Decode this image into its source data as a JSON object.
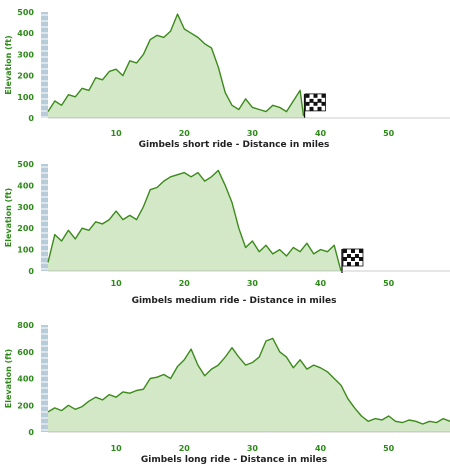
{
  "colors": {
    "line": "#3c8a1c",
    "fill": "#d3e8c6",
    "axis_text": "#2e8b1a",
    "title_text": "#222222",
    "side_bar": "#b8cbd8"
  },
  "chart_data": [
    {
      "type": "area",
      "title": "Gimbels short ride - Distance in miles",
      "ylabel": "Elevation (ft)",
      "xlim": [
        0,
        59
      ],
      "ylim": [
        0,
        500
      ],
      "xticks": [
        10,
        20,
        30,
        40,
        50
      ],
      "yticks": [
        0,
        100,
        200,
        300,
        400,
        500
      ],
      "end_marker": "checkered-flag",
      "series": [
        {
          "x": [
            0,
            1,
            2,
            3,
            4,
            5,
            6,
            7,
            8,
            9,
            10,
            11,
            12,
            13,
            14,
            15,
            16,
            17,
            18,
            19,
            20,
            21,
            22,
            23,
            24,
            25,
            26,
            27,
            28,
            29,
            30,
            31,
            32,
            33,
            34,
            35,
            36,
            37,
            37.5
          ],
          "y": [
            30,
            80,
            60,
            110,
            100,
            140,
            130,
            190,
            180,
            220,
            230,
            200,
            270,
            260,
            300,
            370,
            390,
            380,
            410,
            490,
            420,
            400,
            380,
            350,
            330,
            240,
            120,
            60,
            40,
            90,
            50,
            40,
            30,
            60,
            50,
            30,
            80,
            130,
            10
          ]
        }
      ]
    },
    {
      "type": "area",
      "title": "Gimbels medium ride - Distance in miles",
      "ylabel": "Elevation (ft)",
      "xlim": [
        0,
        59
      ],
      "ylim": [
        0,
        500
      ],
      "xticks": [
        10,
        20,
        30,
        40,
        50
      ],
      "yticks": [
        0,
        100,
        200,
        300,
        400,
        500
      ],
      "end_marker": "checkered-flag",
      "series": [
        {
          "x": [
            0,
            1,
            2,
            3,
            4,
            5,
            6,
            7,
            8,
            9,
            10,
            11,
            12,
            13,
            14,
            15,
            16,
            17,
            18,
            19,
            20,
            21,
            22,
            23,
            24,
            25,
            26,
            27,
            28,
            29,
            30,
            31,
            32,
            33,
            34,
            35,
            36,
            37,
            38,
            39,
            40,
            41,
            42,
            43
          ],
          "y": [
            40,
            170,
            140,
            190,
            150,
            200,
            190,
            230,
            220,
            240,
            280,
            240,
            260,
            240,
            300,
            380,
            390,
            420,
            440,
            450,
            460,
            440,
            460,
            420,
            440,
            470,
            400,
            320,
            200,
            110,
            140,
            90,
            120,
            80,
            100,
            70,
            110,
            90,
            130,
            80,
            100,
            90,
            120,
            0
          ]
        }
      ]
    },
    {
      "type": "area",
      "title": "Gimbels long ride - Distance in miles",
      "ylabel": "Elevation (ft)",
      "xlim": [
        0,
        59
      ],
      "ylim": [
        0,
        800
      ],
      "xticks": [
        10,
        20,
        30,
        40,
        50
      ],
      "yticks": [
        0,
        200,
        400,
        600,
        800
      ],
      "end_marker": "checkered-flag",
      "series": [
        {
          "x": [
            0,
            1,
            2,
            3,
            4,
            5,
            6,
            7,
            8,
            9,
            10,
            11,
            12,
            13,
            14,
            15,
            16,
            17,
            18,
            19,
            20,
            21,
            22,
            23,
            24,
            25,
            26,
            27,
            28,
            29,
            30,
            31,
            32,
            33,
            34,
            35,
            36,
            37,
            38,
            39,
            40,
            41,
            42,
            43,
            44,
            45,
            46,
            47,
            48,
            49,
            50,
            51,
            52,
            53,
            54,
            55,
            56,
            57,
            58,
            59
          ],
          "y": [
            150,
            180,
            160,
            200,
            170,
            190,
            230,
            260,
            240,
            280,
            260,
            300,
            290,
            310,
            320,
            400,
            410,
            430,
            400,
            490,
            540,
            620,
            500,
            420,
            470,
            500,
            560,
            630,
            560,
            500,
            520,
            560,
            680,
            700,
            600,
            560,
            480,
            540,
            470,
            500,
            480,
            450,
            400,
            350,
            250,
            180,
            120,
            80,
            100,
            90,
            120,
            80,
            70,
            90,
            80,
            60,
            80,
            70,
            100,
            80
          ]
        }
      ]
    }
  ]
}
